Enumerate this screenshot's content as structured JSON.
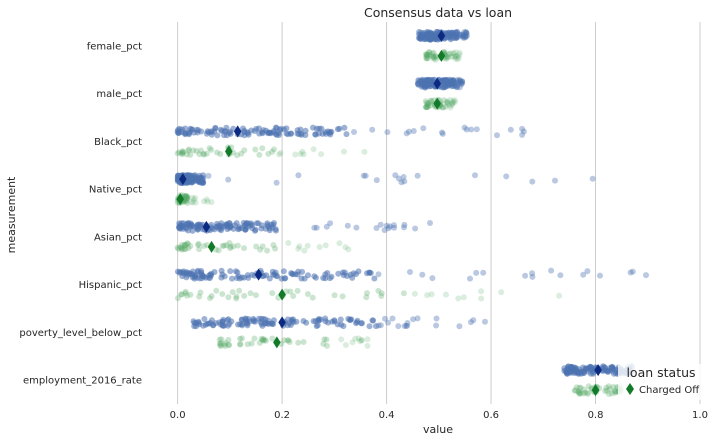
{
  "chart_data": {
    "type": "strip",
    "title": "Consensus data vs loan",
    "xlabel": "value",
    "ylabel": "measurement",
    "xlim": [
      -0.005,
      1.0
    ],
    "x_ticks": [
      0.0,
      0.2,
      0.4,
      0.6,
      0.8,
      1.0
    ],
    "x_tick_labels": [
      "0.0",
      "0.2",
      "0.4",
      "0.6",
      "0.8",
      "1.0"
    ],
    "grid": "vertical",
    "categories": [
      "female_pct",
      "male_pct",
      "Black_pct",
      "Native_pct",
      "Asian_pct",
      "Hispanic_pct",
      "poverty_level_below_pct",
      "employment_2016_rate"
    ],
    "legend": {
      "title": "loan status",
      "position": "bottom-right",
      "entries": [
        "Charged Off"
      ]
    },
    "series": [
      {
        "name": "",
        "color": "#4c72b0",
        "marker_color": "#0d2a82",
        "means": [
          0.505,
          0.497,
          0.115,
          0.01,
          0.055,
          0.155,
          0.2,
          0.805
        ],
        "ranges": [
          [
            0.455,
            0.555
          ],
          [
            0.445,
            0.545
          ],
          [
            0.0,
            0.7
          ],
          [
            0.0,
            0.82
          ],
          [
            0.0,
            0.52
          ],
          [
            0.0,
            0.91
          ],
          [
            0.0,
            0.61
          ],
          [
            0.71,
            0.87
          ]
        ],
        "dense_ranges": [
          [
            0.462,
            0.535
          ],
          [
            0.46,
            0.53
          ],
          [
            0.0,
            0.33
          ],
          [
            0.0,
            0.05
          ],
          [
            0.0,
            0.19
          ],
          [
            0.0,
            0.38
          ],
          [
            0.03,
            0.38
          ],
          [
            0.74,
            0.86
          ]
        ]
      },
      {
        "name": "Charged Off",
        "color": "#55a868",
        "marker_color": "#137a2a",
        "means": [
          0.505,
          0.497,
          0.098,
          0.005,
          0.065,
          0.2,
          0.19,
          0.8
        ],
        "ranges": [
          [
            0.47,
            0.54
          ],
          [
            0.47,
            0.535
          ],
          [
            0.0,
            0.41
          ],
          [
            0.0,
            0.065
          ],
          [
            0.0,
            0.34
          ],
          [
            0.0,
            0.76
          ],
          [
            0.015,
            0.37
          ],
          [
            0.73,
            0.85
          ]
        ],
        "dense_ranges": [
          [
            0.475,
            0.53
          ],
          [
            0.475,
            0.52
          ],
          [
            0.0,
            0.19
          ],
          [
            0.0,
            0.02
          ],
          [
            0.0,
            0.2
          ],
          [
            0.0,
            0.44
          ],
          [
            0.08,
            0.3
          ],
          [
            0.76,
            0.84
          ]
        ]
      }
    ]
  }
}
